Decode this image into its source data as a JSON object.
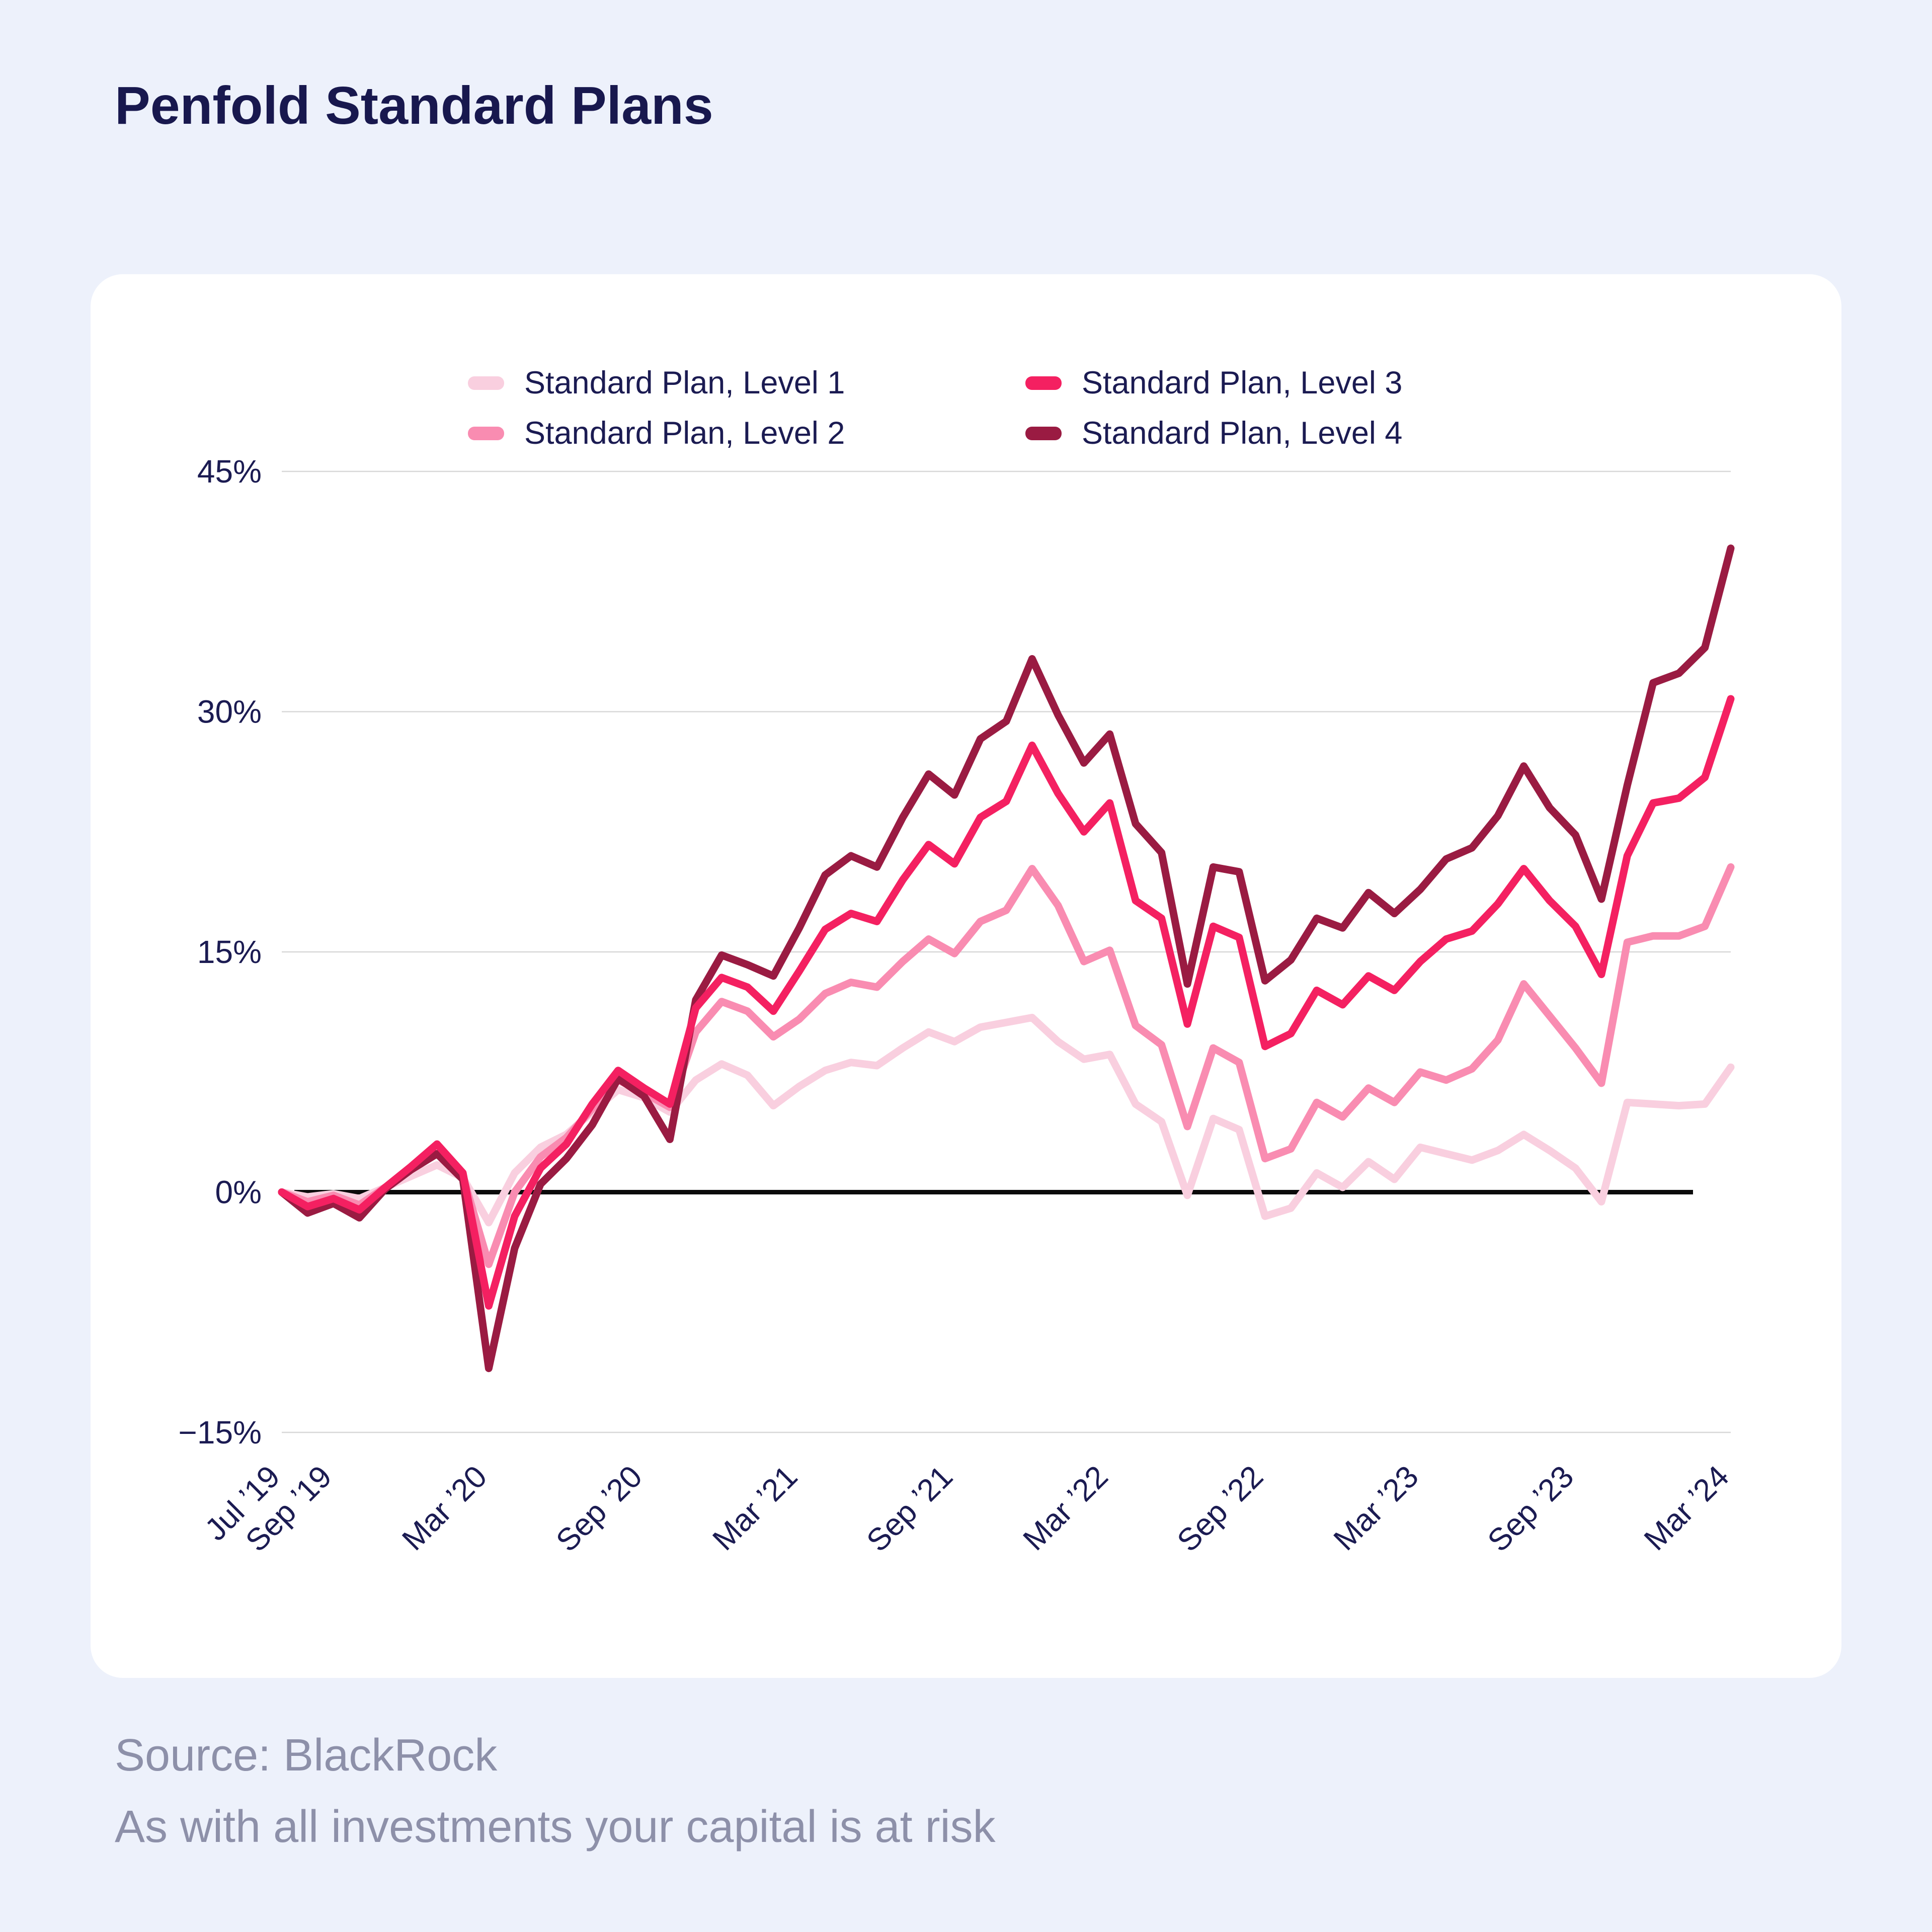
{
  "header": {
    "title": "Penfold Standard Plans"
  },
  "footer": {
    "source": "Source: BlackRock",
    "disclaimer": "As with all investments your capital is at risk"
  },
  "colors": {
    "page_bg": "#EDF1FB",
    "card_bg": "#FFFFFF",
    "title_navy": "#18184E",
    "axis_text": "#1B1B52",
    "footer_gray": "#8D90A9",
    "gridline": "#D8D8D8",
    "zero_line": "#0B0B0B"
  },
  "chart_data": {
    "type": "line",
    "x_range": [
      "Jul 2019",
      "Mar 2024"
    ],
    "x_interval": "monthly",
    "points_per_series": 57,
    "ylim": [
      -15,
      45
    ],
    "grid": "horizontal",
    "legend_position": "top",
    "y_ticks": [
      {
        "value": 45,
        "label": "45%"
      },
      {
        "value": 30,
        "label": "30%"
      },
      {
        "value": 15,
        "label": "15%"
      },
      {
        "value": 0,
        "label": "0%"
      },
      {
        "value": -15,
        "label": "−15%"
      }
    ],
    "x_ticks": [
      {
        "index": 0,
        "label": "Jul ’19"
      },
      {
        "index": 2,
        "label": "Sep ’19"
      },
      {
        "index": 8,
        "label": "Mar ’20"
      },
      {
        "index": 14,
        "label": "Sep ’20"
      },
      {
        "index": 20,
        "label": "Mar ’21"
      },
      {
        "index": 26,
        "label": "Sep ’21"
      },
      {
        "index": 32,
        "label": "Mar ’22"
      },
      {
        "index": 38,
        "label": "Sep ’22"
      },
      {
        "index": 44,
        "label": "Mar ’23"
      },
      {
        "index": 50,
        "label": "Sep ’23"
      },
      {
        "index": 56,
        "label": "Mar ’24"
      }
    ],
    "series": [
      {
        "name": "Standard Plan, Level 1",
        "color": "#F9CFDF",
        "values": [
          0,
          -0.3,
          -0.1,
          -0.4,
          0.3,
          1.0,
          1.7,
          0.9,
          -1.9,
          1.2,
          2.8,
          3.6,
          5.0,
          6.4,
          5.9,
          5.0,
          7.0,
          8.0,
          7.3,
          5.4,
          6.6,
          7.6,
          8.1,
          7.9,
          9.0,
          10.0,
          9.4,
          10.3,
          10.6,
          10.9,
          9.4,
          8.3,
          8.6,
          5.5,
          4.4,
          -0.2,
          4.6,
          3.9,
          -1.5,
          -1.0,
          1.2,
          0.3,
          1.9,
          0.8,
          2.8,
          2.4,
          2.0,
          2.6,
          3.6,
          2.6,
          1.5,
          -0.6,
          5.6,
          5.5,
          5.4,
          5.5,
          7.8
        ]
      },
      {
        "name": "Standard Plan, Level 2",
        "color": "#F98CB1",
        "values": [
          0,
          -0.6,
          -0.2,
          -0.8,
          0.3,
          1.4,
          2.4,
          1.0,
          -4.5,
          0.0,
          2.2,
          3.4,
          5.2,
          7.0,
          6.2,
          5.3,
          10.0,
          11.9,
          11.3,
          9.7,
          10.8,
          12.4,
          13.1,
          12.8,
          14.4,
          15.8,
          14.9,
          16.9,
          17.6,
          20.2,
          17.9,
          14.4,
          15.1,
          10.4,
          9.2,
          4.1,
          9.0,
          8.1,
          2.1,
          2.7,
          5.6,
          4.7,
          6.5,
          5.6,
          7.5,
          7.0,
          7.7,
          9.5,
          13.0,
          11.0,
          9.0,
          6.8,
          15.6,
          16.0,
          16.0,
          16.6,
          20.3
        ]
      },
      {
        "name": "Standard Plan, Level 3",
        "color": "#F42061",
        "values": [
          0,
          -0.9,
          -0.4,
          -1.1,
          0.3,
          1.6,
          3.0,
          1.2,
          -7.1,
          -1.5,
          1.5,
          3.0,
          5.5,
          7.6,
          6.5,
          5.5,
          11.5,
          13.4,
          12.8,
          11.3,
          13.8,
          16.4,
          17.4,
          16.9,
          19.5,
          21.7,
          20.5,
          23.4,
          24.4,
          27.9,
          24.9,
          22.5,
          24.3,
          18.2,
          17.1,
          10.5,
          16.6,
          15.9,
          9.1,
          9.9,
          12.6,
          11.7,
          13.5,
          12.6,
          14.4,
          15.8,
          16.3,
          18.0,
          20.2,
          18.2,
          16.6,
          13.6,
          21.0,
          24.3,
          24.6,
          25.9,
          30.8
        ]
      },
      {
        "name": "Standard Plan, Level 4",
        "color": "#9A1B42",
        "values": [
          0,
          -1.3,
          -0.7,
          -1.6,
          0.2,
          1.4,
          2.4,
          0.8,
          -11.0,
          -3.5,
          0.5,
          2.1,
          4.2,
          7.1,
          6.0,
          3.3,
          12.0,
          14.8,
          14.2,
          13.5,
          16.5,
          19.8,
          21.0,
          20.3,
          23.4,
          26.1,
          24.8,
          28.3,
          29.4,
          33.3,
          29.8,
          26.8,
          28.6,
          23.0,
          21.2,
          13.0,
          20.3,
          20.0,
          13.2,
          14.5,
          17.1,
          16.5,
          18.7,
          17.4,
          18.9,
          20.8,
          21.5,
          23.5,
          26.6,
          24.0,
          22.3,
          18.3,
          25.4,
          31.8,
          32.4,
          34.0,
          40.2
        ]
      }
    ]
  }
}
